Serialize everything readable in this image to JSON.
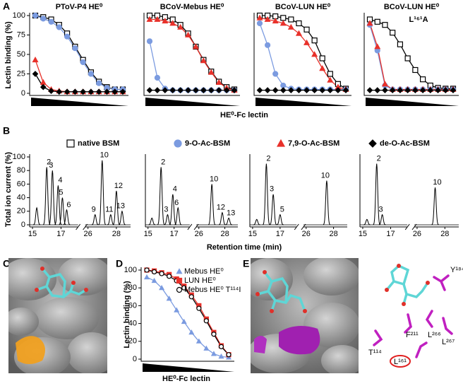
{
  "panel_labels": [
    "A",
    "B",
    "C",
    "D",
    "E"
  ],
  "chart_data": [
    {
      "type": "line",
      "title": "PToV-P4 HE⁰",
      "ylabel": "Lectin binding (%)",
      "xlabel": "HE⁰-Fc lectin",
      "categories": [
        null,
        null,
        null,
        null,
        null,
        null,
        null,
        null,
        null,
        null,
        null,
        null
      ],
      "ylim": [
        0,
        100
      ],
      "yticks": [
        0,
        25,
        50,
        75,
        100
      ],
      "series": [
        {
          "name": "native BSM",
          "color": "#000000",
          "marker": "square",
          "filled": false,
          "values": [
            100,
            98,
            95,
            88,
            77,
            60,
            43,
            27,
            15,
            8,
            5,
            5
          ]
        },
        {
          "name": "9-O-Ac-BSM",
          "color": "#7b9be0",
          "marker": "circle",
          "filled": true,
          "values": [
            100,
            96,
            92,
            85,
            73,
            58,
            40,
            25,
            13,
            7,
            5,
            5
          ]
        },
        {
          "name": "7,9-O-Ac-BSM",
          "color": "#e8312a",
          "marker": "triangle",
          "filled": true,
          "values": [
            43,
            14,
            5,
            3,
            2,
            2,
            2,
            2,
            2,
            2,
            2,
            2
          ]
        },
        {
          "name": "de-O-Ac-BSM",
          "color": "#000000",
          "marker": "diamond",
          "filled": true,
          "values": [
            25,
            8,
            3,
            2,
            2,
            2,
            2,
            2,
            2,
            2,
            2,
            2
          ]
        }
      ]
    },
    {
      "type": "line",
      "title": "BCoV-Mebus HE⁰",
      "categories": [
        null,
        null,
        null,
        null,
        null,
        null,
        null,
        null,
        null,
        null,
        null,
        null
      ],
      "ylim": [
        0,
        100
      ],
      "series": [
        {
          "color": "#000000",
          "marker": "square",
          "filled": false,
          "values": [
            100,
            100,
            98,
            95,
            88,
            77,
            60,
            43,
            28,
            15,
            8,
            5
          ]
        },
        {
          "color": "#7b9be0",
          "marker": "circle",
          "filled": true,
          "values": [
            67,
            20,
            6,
            4,
            4,
            4,
            4,
            4,
            4,
            4,
            4,
            4
          ]
        },
        {
          "color": "#e8312a",
          "marker": "triangle",
          "filled": true,
          "values": [
            95,
            95,
            93,
            90,
            85,
            75,
            60,
            42,
            27,
            14,
            7,
            4
          ]
        },
        {
          "color": "#000000",
          "marker": "diamond",
          "filled": true,
          "values": [
            4,
            4,
            4,
            4,
            4,
            4,
            4,
            4,
            4,
            4,
            4,
            4
          ]
        }
      ]
    },
    {
      "type": "line",
      "title": "BCoV-LUN HE⁰",
      "categories": [
        null,
        null,
        null,
        null,
        null,
        null,
        null,
        null,
        null,
        null,
        null,
        null
      ],
      "ylim": [
        0,
        100
      ],
      "series": [
        {
          "color": "#000000",
          "marker": "square",
          "filled": false,
          "values": [
            100,
            100,
            99,
            97,
            95,
            90,
            82,
            68,
            45,
            25,
            12,
            6
          ]
        },
        {
          "color": "#7b9be0",
          "marker": "circle",
          "filled": true,
          "values": [
            90,
            62,
            25,
            10,
            6,
            5,
            5,
            5,
            5,
            5,
            5,
            5
          ]
        },
        {
          "color": "#e8312a",
          "marker": "triangle",
          "filled": true,
          "values": [
            97,
            95,
            93,
            90,
            85,
            77,
            65,
            50,
            32,
            17,
            8,
            5
          ]
        },
        {
          "color": "#000000",
          "marker": "diamond",
          "filled": true,
          "values": [
            4,
            4,
            4,
            4,
            4,
            4,
            4,
            4,
            4,
            4,
            4,
            4
          ]
        }
      ]
    },
    {
      "type": "line",
      "title": "BCoV-LUN HE⁰",
      "subtitle": "L¹⁶¹A",
      "categories": [
        null,
        null,
        null,
        null,
        null,
        null,
        null,
        null,
        null,
        null,
        null,
        null
      ],
      "ylim": [
        0,
        100
      ],
      "series": [
        {
          "color": "#000000",
          "marker": "square",
          "filled": false,
          "values": [
            95,
            92,
            88,
            78,
            63,
            45,
            30,
            18,
            10,
            7,
            6,
            6
          ]
        },
        {
          "color": "#7b9be0",
          "marker": "circle",
          "filled": true,
          "values": [
            88,
            55,
            10,
            5,
            5,
            5,
            5,
            5,
            5,
            5,
            5,
            5
          ]
        },
        {
          "color": "#e8312a",
          "marker": "triangle",
          "filled": true,
          "values": [
            90,
            60,
            12,
            5,
            5,
            5,
            5,
            5,
            5,
            5,
            5,
            5
          ]
        },
        {
          "color": "#000000",
          "marker": "diamond",
          "filled": true,
          "values": [
            4,
            4,
            4,
            4,
            4,
            4,
            4,
            4,
            4,
            4,
            4,
            4
          ]
        }
      ]
    },
    {
      "type": "peaks",
      "ylabel": "Total ion current (%)",
      "xlabel": "Retention time (min)",
      "ylim": [
        0,
        100
      ],
      "yticks": [
        0,
        20,
        40,
        60,
        80,
        100
      ],
      "xlim": [
        14.8,
        29
      ],
      "xbreak": [
        18.2,
        25.8
      ],
      "xticks": [
        15,
        17,
        26,
        28
      ],
      "peaks": [
        {
          "x": 15.3,
          "height": 25
        },
        {
          "x": 16.0,
          "height": 85,
          "label": "2"
        },
        {
          "x": 16.4,
          "height": 80,
          "label": "3"
        },
        {
          "x": 16.8,
          "height": 58,
          "label": "4"
        },
        {
          "x": 17.1,
          "height": 40,
          "label": "5"
        },
        {
          "x": 17.4,
          "height": 22,
          "label": "6"
        },
        {
          "x": 26.5,
          "height": 15,
          "label": "9"
        },
        {
          "x": 27.0,
          "height": 95,
          "label": "10"
        },
        {
          "x": 27.6,
          "height": 15,
          "label": "11"
        },
        {
          "x": 28.0,
          "height": 50,
          "label": "12"
        },
        {
          "x": 28.4,
          "height": 20,
          "label": "13"
        }
      ]
    },
    {
      "type": "peaks",
      "ylim": [
        0,
        100
      ],
      "xlim": [
        14.8,
        29
      ],
      "xbreak": [
        18.2,
        25.8
      ],
      "xticks": [
        15,
        17,
        26,
        28
      ],
      "peaks": [
        {
          "x": 15.3,
          "height": 10
        },
        {
          "x": 16.0,
          "height": 85,
          "label": "2"
        },
        {
          "x": 16.5,
          "height": 15,
          "label": "3"
        },
        {
          "x": 16.9,
          "height": 45,
          "label": "4"
        },
        {
          "x": 17.3,
          "height": 25,
          "label": "6"
        },
        {
          "x": 27.0,
          "height": 60,
          "label": "10"
        },
        {
          "x": 27.8,
          "height": 18,
          "label": "12"
        },
        {
          "x": 28.3,
          "height": 10,
          "label": "13"
        }
      ]
    },
    {
      "type": "peaks",
      "ylim": [
        0,
        100
      ],
      "xlim": [
        14.8,
        29
      ],
      "xbreak": [
        18.2,
        25.8
      ],
      "xticks": [
        15,
        17,
        26,
        28
      ],
      "peaks": [
        {
          "x": 15.3,
          "height": 8
        },
        {
          "x": 16.0,
          "height": 90,
          "label": "2"
        },
        {
          "x": 16.5,
          "height": 45,
          "label": "3"
        },
        {
          "x": 17.0,
          "height": 15,
          "label": "5"
        },
        {
          "x": 27.5,
          "height": 65,
          "label": "10"
        }
      ]
    },
    {
      "type": "peaks",
      "ylim": [
        0,
        100
      ],
      "xlim": [
        14.8,
        29
      ],
      "xbreak": [
        18.2,
        25.8
      ],
      "xticks": [
        15,
        17,
        26,
        28
      ],
      "peaks": [
        {
          "x": 15.3,
          "height": 8
        },
        {
          "x": 16.0,
          "height": 90,
          "label": "2"
        },
        {
          "x": 16.4,
          "height": 15,
          "label": "3"
        },
        {
          "x": 27.3,
          "height": 55,
          "label": "10"
        }
      ]
    },
    {
      "type": "line",
      "ylabel": "Lectin binding (%)",
      "xlabel": "HE⁰-Fc lectin",
      "legend": "upper right",
      "categories": [
        null,
        null,
        null,
        null,
        null,
        null,
        null,
        null,
        null,
        null,
        null,
        null
      ],
      "ylim": [
        0,
        100
      ],
      "yticks": [
        0,
        20,
        40,
        60,
        80,
        100
      ],
      "series": [
        {
          "name": "Mebus HE⁰",
          "color": "#7b9be0",
          "marker": "triangle",
          "filled": true,
          "values": [
            92,
            88,
            80,
            68,
            55,
            42,
            30,
            20,
            12,
            6,
            3,
            2
          ]
        },
        {
          "name": "LUN HE⁰",
          "color": "#e8312a",
          "marker": "square",
          "filled": true,
          "values": [
            100,
            99,
            97,
            95,
            90,
            82,
            72,
            60,
            45,
            30,
            15,
            5
          ]
        },
        {
          "name": "Mebus HE⁰ T¹¹⁴I",
          "color": "#000000",
          "marker": "circle",
          "filled": false,
          "values": [
            100,
            98,
            96,
            93,
            88,
            80,
            70,
            57,
            43,
            28,
            14,
            5
          ]
        }
      ]
    }
  ],
  "panel_e": {
    "residues": [
      "Y¹⁸⁴",
      "F²¹¹",
      "L²⁶⁶",
      "L²⁶⁷",
      "T¹¹⁴",
      "L¹⁶¹"
    ]
  }
}
